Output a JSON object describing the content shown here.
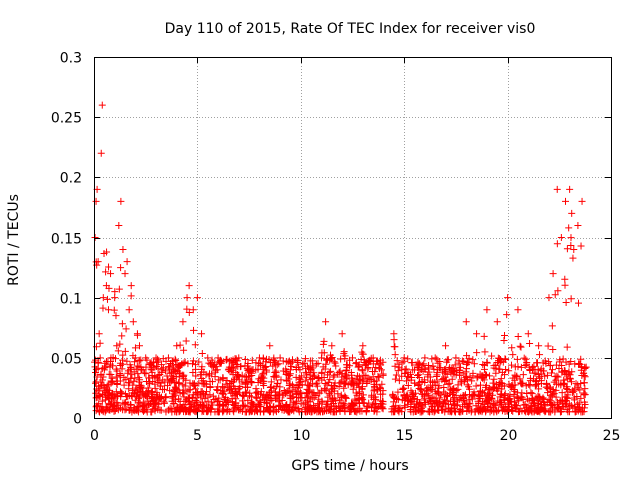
{
  "chart_data": {
    "type": "scatter",
    "title": "Day 110 of 2015, Rate Of TEC Index for receiver vis0",
    "xlabel": "GPS time / hours",
    "ylabel": "ROTI / TECUs",
    "xlim": [
      0,
      25
    ],
    "ylim": [
      0,
      0.3
    ],
    "grid": true,
    "marker": "plus",
    "color": "#ff0000",
    "xticks": [
      0,
      5,
      10,
      15,
      20,
      25
    ],
    "xtick_labels": [
      "0",
      "5",
      "10",
      "15",
      "20",
      "25"
    ],
    "yticks": [
      0,
      0.05,
      0.1,
      0.15,
      0.2,
      0.25,
      0.3
    ],
    "ytick_labels": [
      "0",
      "0.05",
      "0.1",
      "0.15",
      "0.2",
      "0.25",
      "0.3"
    ],
    "data_gap_hours": [
      14.0,
      14.4
    ],
    "series": [
      {
        "name": "ROTI",
        "x": [
          0.05,
          0.1,
          0.15,
          0.2,
          0.25,
          0.3,
          0.35,
          0.4,
          0.45,
          0.5,
          0.6,
          0.7,
          0.8,
          0.9,
          1.0,
          1.1,
          1.2,
          1.3,
          1.4,
          1.5,
          1.6,
          1.7,
          1.8,
          1.9,
          2.0,
          2.1,
          2.2,
          2.3,
          2.5,
          2.8,
          3.0,
          3.3,
          3.6,
          4.0,
          4.3,
          4.5,
          4.6,
          4.8,
          5.0,
          5.2,
          5.5,
          6.0,
          6.5,
          7.0,
          7.5,
          8.0,
          8.5,
          9.0,
          9.5,
          10.0,
          10.5,
          11.0,
          11.2,
          11.5,
          12.0,
          12.5,
          13.0,
          13.5,
          13.9,
          14.5,
          15.0,
          15.5,
          16.0,
          16.5,
          17.0,
          17.5,
          18.0,
          18.5,
          19.0,
          19.5,
          20.0,
          20.5,
          21.0,
          21.5,
          22.0,
          22.2,
          22.4,
          22.6,
          22.8,
          23.0,
          23.1,
          23.2,
          23.4,
          23.6
        ],
        "y": [
          0.15,
          0.18,
          0.19,
          0.13,
          0.07,
          0.05,
          0.22,
          0.26,
          0.1,
          0.04,
          0.11,
          0.09,
          0.12,
          0.03,
          0.1,
          0.06,
          0.16,
          0.18,
          0.14,
          0.12,
          0.13,
          0.09,
          0.11,
          0.08,
          0.05,
          0.07,
          0.06,
          0.04,
          0.05,
          0.04,
          0.05,
          0.04,
          0.05,
          0.06,
          0.08,
          0.1,
          0.11,
          0.09,
          0.1,
          0.07,
          0.05,
          0.05,
          0.04,
          0.05,
          0.04,
          0.05,
          0.06,
          0.05,
          0.04,
          0.03,
          0.04,
          0.05,
          0.08,
          0.06,
          0.07,
          0.05,
          0.06,
          0.05,
          0.04,
          0.07,
          0.05,
          0.04,
          0.05,
          0.05,
          0.06,
          0.05,
          0.08,
          0.07,
          0.09,
          0.08,
          0.1,
          0.09,
          0.07,
          0.06,
          0.1,
          0.12,
          0.19,
          0.15,
          0.18,
          0.19,
          0.17,
          0.14,
          0.16,
          0.18
        ]
      }
    ]
  }
}
